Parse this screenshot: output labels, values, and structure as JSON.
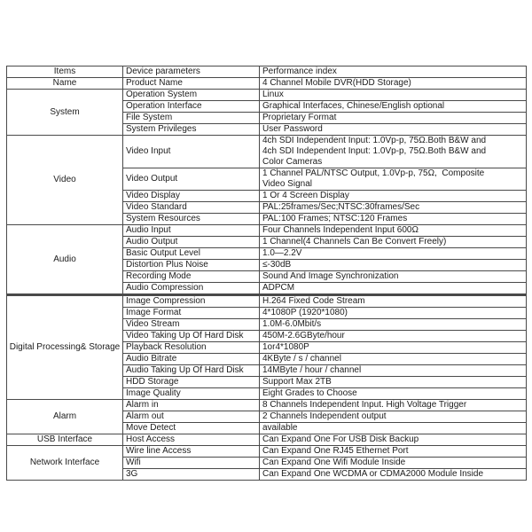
{
  "table": {
    "border_color": "#4a4a4a",
    "text_color": "#1c1c1c",
    "background_color": "#ffffff",
    "headers": [
      "Items",
      "Device parameters",
      "Performance index"
    ],
    "groups": [
      {
        "item": "Name",
        "rows": [
          {
            "param": "Product Name",
            "value": "4 Channel Mobile DVR(HDD Storage)"
          }
        ]
      },
      {
        "item": "System",
        "rows": [
          {
            "param": "Operation System",
            "value": "Linux"
          },
          {
            "param": "Operation Interface",
            "value": "Graphical Interfaces, Chinese/English optional"
          },
          {
            "param": "File System",
            "value": "Proprietary Format"
          },
          {
            "param": "System Privileges",
            "value": "User Password"
          }
        ]
      },
      {
        "item": "Video",
        "rows": [
          {
            "param": "Video Input",
            "value": "4ch SDI Independent Input: 1.0Vp-p, 75Ω.Both B&W and\n4ch SDI Independent Input: 1.0Vp-p, 75Ω.Both B&W and\nColor Cameras"
          },
          {
            "param": "Video Output",
            "value": "1 Channel PAL/NTSC Output, 1.0Vp-p, 75Ω,  Composite\nVideo Signal"
          },
          {
            "param": "Video Display",
            "value": "1 Or 4 Screen Display"
          },
          {
            "param": "Video Standard",
            "value": "PAL:25frames/Sec;NTSC:30frames/Sec"
          },
          {
            "param": "System Resources",
            "value": "PAL:100 Frames; NTSC:120 Frames"
          }
        ]
      },
      {
        "item": "Audio",
        "rows": [
          {
            "param": "Audio Input",
            "value": "Four Channels Independent Input 600Ω"
          },
          {
            "param": "Audio Output",
            "value": "1 Channel(4 Channels Can Be Convert Freely)"
          },
          {
            "param": "Basic Output Level",
            "value": "1.0—2.2V"
          },
          {
            "param": "Distortion Plus Noise",
            "value": "≤-30dB"
          },
          {
            "param": "Recording Mode",
            "value": "Sound And Image Synchronization"
          },
          {
            "param": "Audio Compression",
            "value": "ADPCM"
          }
        ]
      },
      {
        "item": "Digital Processing& Storage",
        "thick_top_border": true,
        "rows": [
          {
            "param": "Image Compression",
            "value": "H.264 Fixed Code Stream"
          },
          {
            "param": "Image Format",
            "value": "4*1080P (1920*1080)"
          },
          {
            "param": "Video Stream",
            "value": "1.0M-6.0Mbit/s"
          },
          {
            "param": "Video Taking Up Of Hard Disk",
            "value": "450M-2.6GByte/hour"
          },
          {
            "param": "Playback Resolution",
            "value": "1or4*1080P"
          },
          {
            "param": "Audio Bitrate",
            "value": "4KByte / s / channel"
          },
          {
            "param": "Audio Taking Up Of Hard Disk",
            "value": "14MByte / hour / channel"
          },
          {
            "param": "HDD Storage",
            "value": "Support Max 2TB"
          },
          {
            "param": "Image Quality",
            "value": "Eight Grades to Choose"
          }
        ]
      },
      {
        "item": "Alarm",
        "rows": [
          {
            "param": "Alarm in",
            "value": "8 Channels Independent Input. High Voltage Trigger"
          },
          {
            "param": "Alarm out",
            "value": "2 Channels Independent output"
          },
          {
            "param": "Move Detect",
            "value": "available"
          }
        ]
      },
      {
        "item": "USB Interface",
        "rows": [
          {
            "param": "Host Access",
            "value": "Can Expand One For USB Disk Backup"
          }
        ]
      },
      {
        "item": "Network Interface",
        "rows": [
          {
            "param": "Wire line Access",
            "value": "Can Expand One RJ45 Ethernet Port"
          },
          {
            "param": "Wifi",
            "value": "Can Expand One Wifi Module Inside"
          },
          {
            "param": "3G",
            "value": "Can Expand One WCDMA or CDMA2000 Module Inside"
          }
        ]
      }
    ]
  }
}
